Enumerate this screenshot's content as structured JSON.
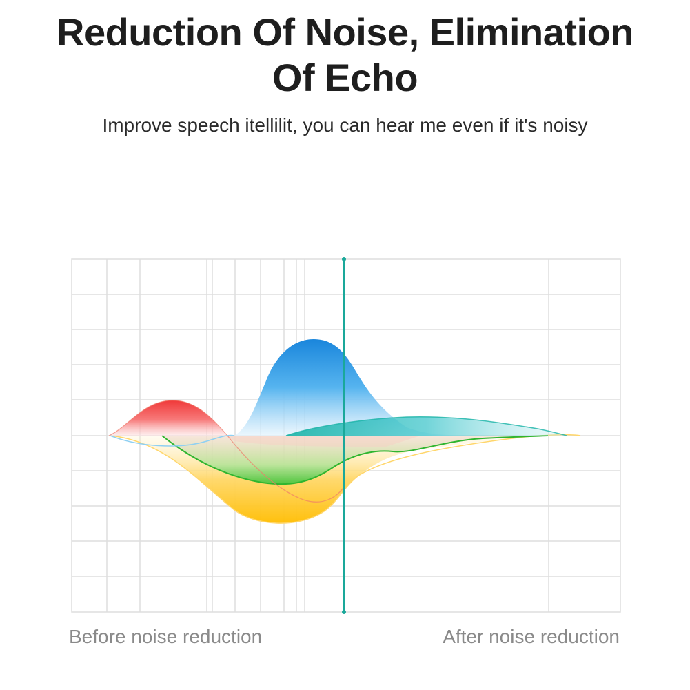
{
  "header": {
    "title_line1": "Reduction Of Noise, Elimination",
    "title_line2": "Of Echo",
    "subtitle": "Improve speech itellilit, you can hear me even if it's noisy"
  },
  "diagram": {
    "captions": {
      "before": "Before noise reduction",
      "after": "After noise reduction"
    },
    "colors": {
      "divider": "#1aa89a",
      "grid": "#dedede",
      "red_wave": "#f04848",
      "blue_wave": "#1e8fe0",
      "green_wave": "#3cc43c",
      "yellow_wave": "#ffc107",
      "teal_wave": "#19b3a6"
    }
  }
}
